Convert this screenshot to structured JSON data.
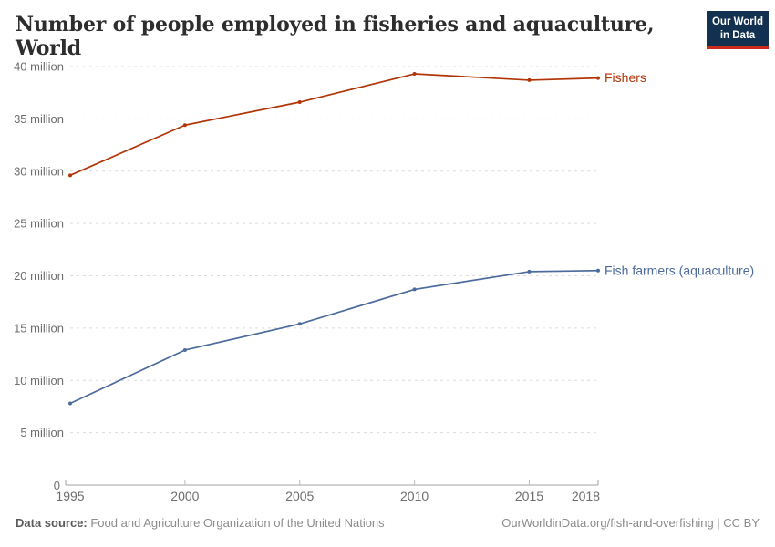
{
  "header": {
    "title": "Number of people employed in fisheries and aquaculture, World"
  },
  "logo": {
    "line1": "Our World",
    "line2": "in Data",
    "bg_color": "#12304f",
    "accent_color": "#cc2a1d"
  },
  "chart_data": {
    "type": "line",
    "x": [
      1995,
      2000,
      2005,
      2010,
      2015,
      2018
    ],
    "x_tick_labels": [
      "1995",
      "2000",
      "2005",
      "2010",
      "2015",
      "2018"
    ],
    "unit": "million people",
    "series": [
      {
        "name": "Fishers",
        "color": "#B13507",
        "values": [
          29.6,
          34.4,
          36.6,
          39.3,
          38.7,
          38.9
        ]
      },
      {
        "name": "Fish farmers (aquaculture)",
        "color": "#4C6A9C",
        "values": [
          7.8,
          12.9,
          15.4,
          18.7,
          20.4,
          20.5
        ]
      }
    ],
    "title": "Number of people employed in fisheries and aquaculture, World",
    "xlabel": "",
    "ylabel": "",
    "xlim": [
      1995,
      2018
    ],
    "ylim": [
      0,
      40
    ],
    "yticks": [
      {
        "value": 0,
        "label": "0"
      },
      {
        "value": 5,
        "label": "5 million"
      },
      {
        "value": 10,
        "label": "10 million"
      },
      {
        "value": 15,
        "label": "15 million"
      },
      {
        "value": 20,
        "label": "20 million"
      },
      {
        "value": 25,
        "label": "25 million"
      },
      {
        "value": 30,
        "label": "30 million"
      },
      {
        "value": 35,
        "label": "35 million"
      },
      {
        "value": 40,
        "label": "40 million"
      }
    ],
    "grid": "horizontal-dashed",
    "legend": "end-of-line-labels"
  },
  "footer": {
    "source_label": "Data source:",
    "source_text": " Food and Agriculture Organization of the United Nations",
    "link_text": "OurWorldinData.org/fish-and-overfishing | CC BY"
  }
}
